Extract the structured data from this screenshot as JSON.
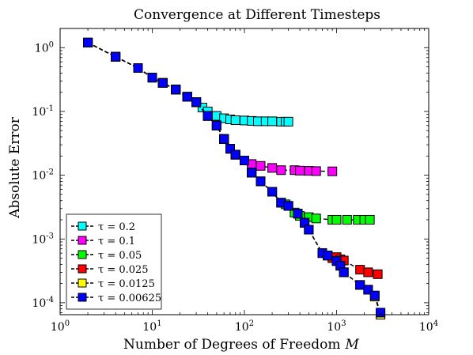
{
  "chart_data": {
    "type": "scatter",
    "title": "Convergence at Different Timesteps",
    "xlabel": "Number of Degrees of Freedom",
    "xlabel_var": "M",
    "ylabel": "Absolute Error",
    "x_scale": "log",
    "y_scale": "log",
    "xlim": [
      1,
      10000
    ],
    "ylim": [
      6.5e-05,
      2
    ],
    "x_ticks": [
      {
        "value": 1,
        "base": "10",
        "exp": "0"
      },
      {
        "value": 10,
        "base": "10",
        "exp": "1"
      },
      {
        "value": 100,
        "base": "10",
        "exp": "2"
      },
      {
        "value": 1000,
        "base": "10",
        "exp": "3"
      },
      {
        "value": 10000,
        "base": "10",
        "exp": "4"
      }
    ],
    "y_ticks": [
      {
        "value": 0.0001,
        "base": "10",
        "exp": "-4"
      },
      {
        "value": 0.001,
        "base": "10",
        "exp": "-3"
      },
      {
        "value": 0.01,
        "base": "10",
        "exp": "-2"
      },
      {
        "value": 0.1,
        "base": "10",
        "exp": "-1"
      },
      {
        "value": 1,
        "base": "10",
        "exp": "0"
      }
    ],
    "grid": false,
    "legend_position": "bottom-left",
    "line_style": "dashed black line with square markers",
    "series": [
      {
        "name": "τ = 0.2",
        "color": "#00ffff",
        "x": [
          2,
          4,
          7,
          10,
          13,
          18,
          24,
          30,
          35,
          40,
          50,
          60,
          70,
          80,
          100,
          120,
          140,
          170,
          200,
          250,
          280,
          300
        ],
        "y": [
          1.2,
          0.72,
          0.48,
          0.34,
          0.28,
          0.22,
          0.17,
          0.14,
          0.115,
          0.1,
          0.085,
          0.078,
          0.075,
          0.073,
          0.072,
          0.071,
          0.07,
          0.07,
          0.07,
          0.069,
          0.069,
          0.069
        ]
      },
      {
        "name": "τ = 0.1",
        "color": "#ff00ff",
        "x": [
          2,
          4,
          7,
          10,
          13,
          18,
          24,
          30,
          40,
          50,
          60,
          70,
          80,
          100,
          120,
          150,
          200,
          250,
          350,
          400,
          500,
          600,
          900
        ],
        "y": [
          1.2,
          0.72,
          0.48,
          0.34,
          0.28,
          0.22,
          0.17,
          0.14,
          0.085,
          0.06,
          0.037,
          0.026,
          0.021,
          0.017,
          0.015,
          0.014,
          0.013,
          0.012,
          0.012,
          0.0118,
          0.0117,
          0.0116,
          0.0115
        ]
      },
      {
        "name": "τ = 0.05",
        "color": "#00ff00",
        "x": [
          2,
          4,
          7,
          10,
          13,
          18,
          24,
          30,
          40,
          50,
          60,
          70,
          80,
          100,
          120,
          150,
          200,
          250,
          280,
          350,
          400,
          500,
          600,
          900,
          1000,
          1300,
          1700,
          2000,
          2300
        ],
        "y": [
          1.2,
          0.72,
          0.48,
          0.34,
          0.28,
          0.22,
          0.17,
          0.14,
          0.085,
          0.06,
          0.037,
          0.026,
          0.021,
          0.017,
          0.011,
          0.008,
          0.0055,
          0.0037,
          0.0035,
          0.0026,
          0.0023,
          0.0022,
          0.0021,
          0.002,
          0.002,
          0.002,
          0.002,
          0.002,
          0.002
        ]
      },
      {
        "name": "τ = 0.025",
        "color": "#ff0000",
        "x": [
          2,
          4,
          7,
          10,
          13,
          18,
          24,
          30,
          40,
          50,
          60,
          70,
          80,
          100,
          120,
          150,
          200,
          250,
          300,
          380,
          450,
          500,
          700,
          800,
          900,
          1000,
          1100,
          1200,
          1800,
          2200,
          2800
        ],
        "y": [
          1.2,
          0.72,
          0.48,
          0.34,
          0.28,
          0.22,
          0.17,
          0.14,
          0.085,
          0.06,
          0.037,
          0.026,
          0.021,
          0.017,
          0.011,
          0.008,
          0.0055,
          0.0037,
          0.0033,
          0.0025,
          0.0018,
          0.0014,
          0.0006,
          0.00055,
          0.0005,
          0.00052,
          0.00048,
          0.00046,
          0.00033,
          0.0003,
          0.00028
        ]
      },
      {
        "name": "τ = 0.0125",
        "color": "#ffff00",
        "x": [
          2,
          4,
          7,
          10,
          13,
          18,
          24,
          30,
          40,
          50,
          60,
          70,
          80,
          100,
          120,
          150,
          200,
          250,
          300,
          380,
          450,
          500,
          700,
          800,
          1000,
          1100,
          1200,
          1800,
          2200,
          2600,
          3000
        ],
        "y": [
          1.2,
          0.72,
          0.48,
          0.34,
          0.28,
          0.22,
          0.17,
          0.14,
          0.085,
          0.06,
          0.037,
          0.026,
          0.021,
          0.017,
          0.011,
          0.008,
          0.0055,
          0.0037,
          0.0033,
          0.0025,
          0.0018,
          0.0014,
          0.0006,
          0.00055,
          0.00045,
          0.00038,
          0.0003,
          0.00019,
          0.00016,
          0.000125,
          6.5e-05
        ]
      },
      {
        "name": "τ = 0.00625",
        "color": "#0000ff",
        "x": [
          2,
          4,
          7,
          10,
          13,
          18,
          24,
          30,
          40,
          50,
          60,
          70,
          80,
          100,
          120,
          150,
          200,
          250,
          300,
          380,
          450,
          500,
          700,
          800,
          1000,
          1100,
          1200,
          1800,
          2200,
          2600,
          3000
        ],
        "y": [
          1.2,
          0.72,
          0.48,
          0.34,
          0.28,
          0.22,
          0.17,
          0.14,
          0.085,
          0.06,
          0.037,
          0.026,
          0.021,
          0.017,
          0.011,
          0.008,
          0.0055,
          0.0037,
          0.0033,
          0.0025,
          0.0018,
          0.0014,
          0.0006,
          0.00055,
          0.00045,
          0.00038,
          0.0003,
          0.00019,
          0.00016,
          0.00013,
          7e-05
        ]
      }
    ]
  }
}
